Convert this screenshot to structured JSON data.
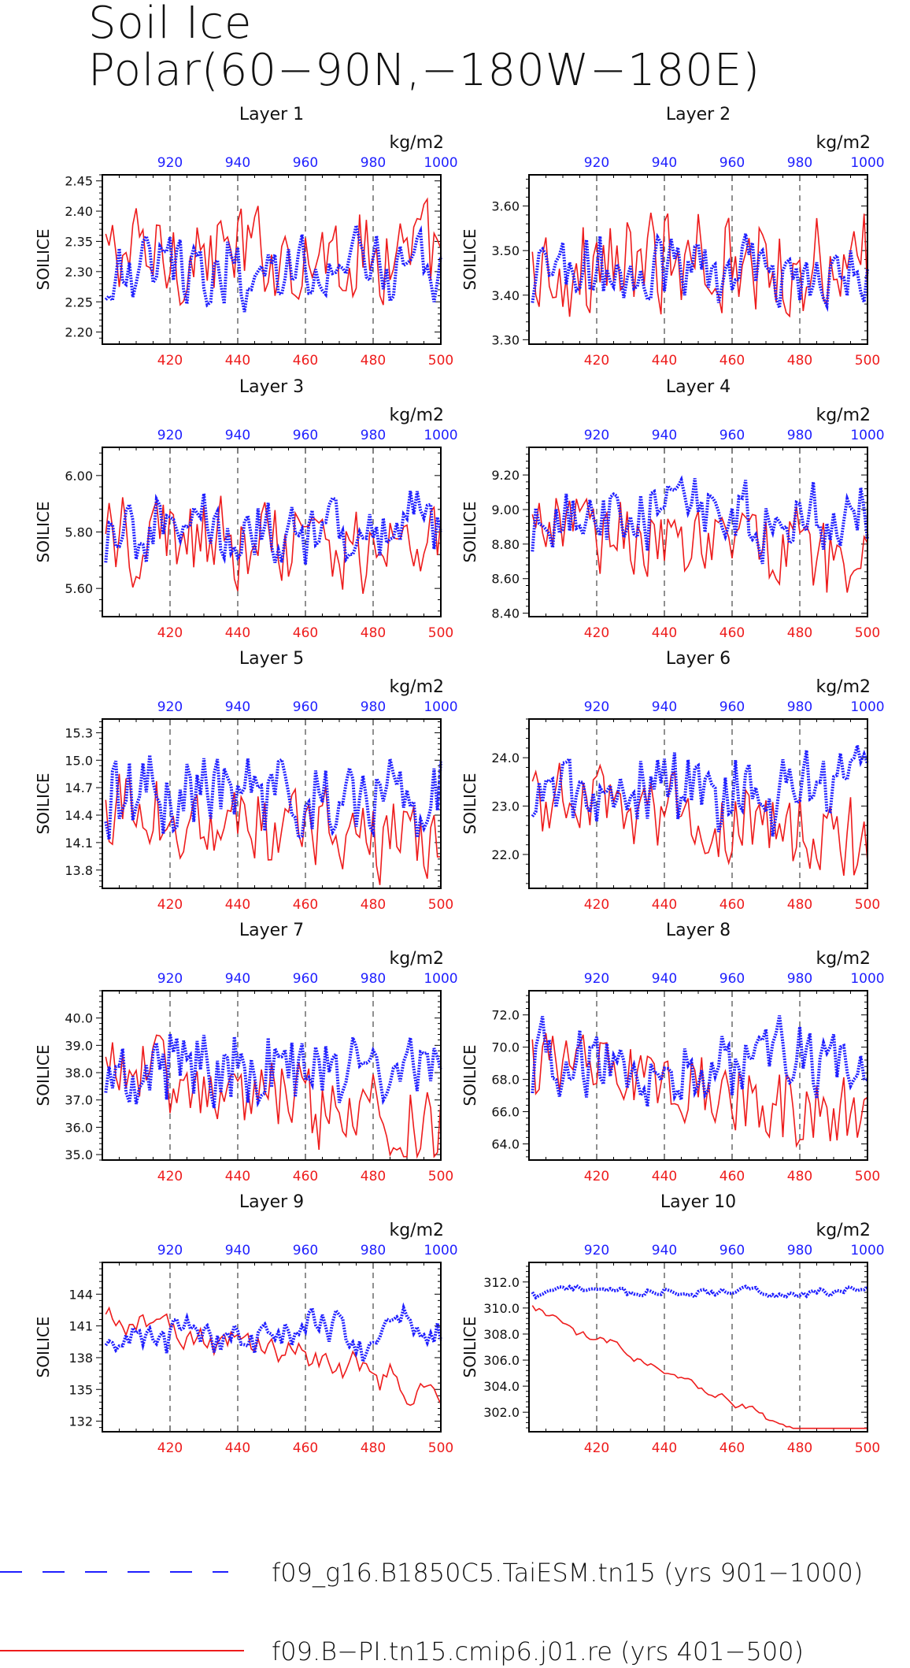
{
  "title": {
    "line1": "Soil Ice",
    "line2": "Polar(60−90N,−180W−180E)"
  },
  "colors": {
    "model_a": "#1f1fff",
    "model_b": "#ee1c1c",
    "axis": "#000000"
  },
  "chart_data": [
    {
      "type": "line",
      "panel_title": "Layer 1",
      "ylabel": "SOILICE",
      "top_unit": "kg/m2",
      "xlim_bottom": [
        400,
        500
      ],
      "xlim_top": [
        900,
        1000
      ],
      "ylim": [
        2.18,
        2.46
      ],
      "yticks": [
        2.2,
        2.25,
        2.3,
        2.35,
        2.4,
        2.45
      ],
      "ytick_labels": [
        "2.20",
        "2.25",
        "2.30",
        "2.35",
        "2.40",
        "2.45"
      ],
      "xticks_bottom": [
        420,
        440,
        460,
        480,
        500
      ],
      "xticks_top": [
        920,
        940,
        960,
        980,
        1000
      ],
      "series": [
        {
          "name": "f09_g16.B1850C5.TaiESM.tn15 (yrs 901−1000)",
          "mean": 2.3,
          "amp": 0.045,
          "trend": 0.0
        },
        {
          "name": "f09.B−PI.tn15.cmip6.j01.re (yrs 401−500)",
          "mean": 2.33,
          "amp": 0.05,
          "trend": 0.0
        }
      ]
    },
    {
      "type": "line",
      "panel_title": "Layer 2",
      "ylabel": "SOILICE",
      "top_unit": "kg/m2",
      "xlim_bottom": [
        400,
        500
      ],
      "xlim_top": [
        900,
        1000
      ],
      "ylim": [
        3.29,
        3.67
      ],
      "yticks": [
        3.3,
        3.4,
        3.5,
        3.6
      ],
      "ytick_labels": [
        "3.30",
        "3.40",
        "3.50",
        "3.60"
      ],
      "xticks_bottom": [
        420,
        440,
        460,
        480,
        500
      ],
      "xticks_top": [
        920,
        940,
        960,
        980,
        1000
      ],
      "series": [
        {
          "name": "f09_g16.B1850C5.TaiESM.tn15 (yrs 901−1000)",
          "mean": 3.45,
          "amp": 0.06,
          "trend": 0.0
        },
        {
          "name": "f09.B−PI.tn15.cmip6.j01.re (yrs 401−500)",
          "mean": 3.47,
          "amp": 0.07,
          "trend": 0.0
        }
      ]
    },
    {
      "type": "line",
      "panel_title": "Layer 3",
      "ylabel": "SOILICE",
      "top_unit": "kg/m2",
      "xlim_bottom": [
        400,
        500
      ],
      "xlim_top": [
        900,
        1000
      ],
      "ylim": [
        5.5,
        6.1
      ],
      "yticks": [
        5.6,
        5.8,
        6.0
      ],
      "ytick_labels": [
        "5.60",
        "5.80",
        "6.00"
      ],
      "xticks_bottom": [
        420,
        440,
        460,
        480,
        500
      ],
      "xticks_top": [
        920,
        940,
        960,
        980,
        1000
      ],
      "series": [
        {
          "name": "f09_g16.B1850C5.TaiESM.tn15 (yrs 901−1000)",
          "mean": 5.8,
          "amp": 0.09,
          "trend": 0.0
        },
        {
          "name": "f09.B−PI.tn15.cmip6.j01.re (yrs 401−500)",
          "mean": 5.78,
          "amp": 0.1,
          "trend": -0.0005
        }
      ]
    },
    {
      "type": "line",
      "panel_title": "Layer 4",
      "ylabel": "SOILICE",
      "top_unit": "kg/m2",
      "xlim_bottom": [
        400,
        500
      ],
      "xlim_top": [
        900,
        1000
      ],
      "ylim": [
        8.38,
        9.36
      ],
      "yticks": [
        8.4,
        8.6,
        8.8,
        9.0,
        9.2
      ],
      "ytick_labels": [
        "8.40",
        "8.60",
        "8.80",
        "9.00",
        "9.20"
      ],
      "xticks_bottom": [
        420,
        440,
        460,
        480,
        500
      ],
      "xticks_top": [
        920,
        940,
        960,
        980,
        1000
      ],
      "series": [
        {
          "name": "f09_g16.B1850C5.TaiESM.tn15 (yrs 901−1000)",
          "mean": 8.95,
          "amp": 0.15,
          "trend": 0.0
        },
        {
          "name": "f09.B−PI.tn15.cmip6.j01.re (yrs 401−500)",
          "mean": 8.9,
          "amp": 0.15,
          "trend": -0.002
        }
      ]
    },
    {
      "type": "line",
      "panel_title": "Layer 5",
      "ylabel": "SOILICE",
      "top_unit": "kg/m2",
      "xlim_bottom": [
        400,
        500
      ],
      "xlim_top": [
        900,
        1000
      ],
      "ylim": [
        13.6,
        15.45
      ],
      "yticks": [
        13.8,
        14.1,
        14.4,
        14.7,
        15.0,
        15.3
      ],
      "ytick_labels": [
        "13.8",
        "14.1",
        "14.4",
        "14.7",
        "15.0",
        "15.3"
      ],
      "xticks_bottom": [
        420,
        440,
        460,
        480,
        500
      ],
      "xticks_top": [
        920,
        940,
        960,
        980,
        1000
      ],
      "series": [
        {
          "name": "f09_g16.B1850C5.TaiESM.tn15 (yrs 901−1000)",
          "mean": 14.6,
          "amp": 0.35,
          "trend": 0.0
        },
        {
          "name": "f09.B−PI.tn15.cmip6.j01.re (yrs 401−500)",
          "mean": 14.5,
          "amp": 0.3,
          "trend": -0.005
        }
      ]
    },
    {
      "type": "line",
      "panel_title": "Layer 6",
      "ylabel": "SOILICE",
      "top_unit": "kg/m2",
      "xlim_bottom": [
        400,
        500
      ],
      "xlim_top": [
        900,
        1000
      ],
      "ylim": [
        21.3,
        24.8
      ],
      "yticks": [
        22.0,
        23.0,
        24.0
      ],
      "ytick_labels": [
        "22.0",
        "23.0",
        "24.0"
      ],
      "xticks_bottom": [
        420,
        440,
        460,
        480,
        500
      ],
      "xticks_top": [
        920,
        940,
        960,
        980,
        1000
      ],
      "series": [
        {
          "name": "f09_g16.B1850C5.TaiESM.tn15 (yrs 901−1000)",
          "mean": 23.3,
          "amp": 0.6,
          "trend": 0.0
        },
        {
          "name": "f09.B−PI.tn15.cmip6.j01.re (yrs 401−500)",
          "mean": 23.2,
          "amp": 0.55,
          "trend": -0.01
        }
      ]
    },
    {
      "type": "line",
      "panel_title": "Layer 7",
      "ylabel": "SOILICE",
      "top_unit": "kg/m2",
      "xlim_bottom": [
        400,
        500
      ],
      "xlim_top": [
        900,
        1000
      ],
      "ylim": [
        34.8,
        41.0
      ],
      "yticks": [
        35.0,
        36.0,
        37.0,
        38.0,
        39.0,
        40.0
      ],
      "ytick_labels": [
        "35.0",
        "36.0",
        "37.0",
        "38.0",
        "39.0",
        "40.0"
      ],
      "xticks_bottom": [
        420,
        440,
        460,
        480,
        500
      ],
      "xticks_top": [
        920,
        940,
        960,
        980,
        1000
      ],
      "series": [
        {
          "name": "f09_g16.B1850C5.TaiESM.tn15 (yrs 901−1000)",
          "mean": 38.3,
          "amp": 1.1,
          "trend": 0.0
        },
        {
          "name": "f09.B−PI.tn15.cmip6.j01.re (yrs 401−500)",
          "mean": 38.3,
          "amp": 0.9,
          "trend": -0.025
        }
      ]
    },
    {
      "type": "line",
      "panel_title": "Layer 8",
      "ylabel": "SOILICE",
      "top_unit": "kg/m2",
      "xlim_bottom": [
        400,
        500
      ],
      "xlim_top": [
        900,
        1000
      ],
      "ylim": [
        63.0,
        73.5
      ],
      "yticks": [
        64.0,
        66.0,
        68.0,
        70.0,
        72.0
      ],
      "ytick_labels": [
        "64.0",
        "66.0",
        "68.0",
        "70.0",
        "72.0"
      ],
      "xticks_bottom": [
        420,
        440,
        460,
        480,
        500
      ],
      "xticks_top": [
        920,
        940,
        960,
        980,
        1000
      ],
      "series": [
        {
          "name": "f09_g16.B1850C5.TaiESM.tn15 (yrs 901−1000)",
          "mean": 69.0,
          "amp": 1.8,
          "trend": 0.0
        },
        {
          "name": "f09.B−PI.tn15.cmip6.j01.re (yrs 401−500)",
          "mean": 69.5,
          "amp": 1.5,
          "trend": -0.04
        }
      ]
    },
    {
      "type": "line",
      "panel_title": "Layer 9",
      "ylabel": "SOILICE",
      "top_unit": "kg/m2",
      "xlim_bottom": [
        400,
        500
      ],
      "xlim_top": [
        900,
        1000
      ],
      "ylim": [
        131.0,
        147.0
      ],
      "yticks": [
        132,
        135,
        138,
        141,
        144
      ],
      "ytick_labels": [
        "132",
        "135",
        "138",
        "141",
        "144"
      ],
      "xticks_bottom": [
        420,
        440,
        460,
        480,
        500
      ],
      "xticks_top": [
        920,
        940,
        960,
        980,
        1000
      ],
      "series": [
        {
          "name": "f09_g16.B1850C5.TaiESM.tn15 (yrs 901−1000)",
          "mean": 140.5,
          "amp": 2.8,
          "trend": 0.0
        },
        {
          "name": "f09.B−PI.tn15.cmip6.j01.re (yrs 401−500)",
          "mean": 142.0,
          "amp": 2.0,
          "trend": -0.07
        }
      ]
    },
    {
      "type": "line",
      "panel_title": "Layer 10",
      "ylabel": "SOILICE",
      "top_unit": "kg/m2",
      "xlim_bottom": [
        400,
        500
      ],
      "xlim_top": [
        900,
        1000
      ],
      "ylim": [
        300.5,
        313.5
      ],
      "yticks": [
        302.0,
        304.0,
        306.0,
        308.0,
        310.0,
        312.0
      ],
      "ytick_labels": [
        "302.0",
        "304.0",
        "306.0",
        "308.0",
        "310.0",
        "312.0"
      ],
      "xticks_bottom": [
        420,
        440,
        460,
        480,
        500
      ],
      "xticks_top": [
        920,
        940,
        960,
        980,
        1000
      ],
      "series": [
        {
          "name": "f09_g16.B1850C5.TaiESM.tn15 (yrs 901−1000)",
          "mean": 311.2,
          "amp": 0.6,
          "trend": 0.0
        },
        {
          "name": "f09.B−PI.tn15.cmip6.j01.re (yrs 401−500)",
          "mean": 310.0,
          "amp": 0.5,
          "trend": -0.12
        }
      ]
    }
  ],
  "legend": {
    "items": [
      {
        "label": "f09_g16.B1850C5.TaiESM.tn15 (yrs 901−1000)",
        "style": "dashed",
        "color": "#1f1fff"
      },
      {
        "label": "f09.B−PI.tn15.cmip6.j01.re (yrs 401−500)",
        "style": "solid",
        "color": "#ee1c1c"
      }
    ]
  }
}
